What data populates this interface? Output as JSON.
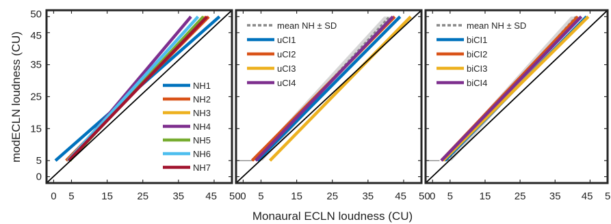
{
  "figure": {
    "xlabel": "Monaural ECLN loudness (CU)",
    "ylabel": "modECLN loudness (CU)"
  },
  "chart_data": [
    {
      "type": "line",
      "title": "",
      "xlim": [
        -2,
        50
      ],
      "ylim": [
        -2,
        52
      ],
      "xticks": [
        0,
        5,
        15,
        25,
        35,
        45,
        50
      ],
      "yticks": [
        0,
        5,
        15,
        25,
        35,
        45,
        50
      ],
      "show_yticklabels": true,
      "legend_position": "lower-right",
      "reference_line": {
        "from": [
          -2,
          -2
        ],
        "to": [
          50,
          52
        ]
      },
      "series": [
        {
          "name": "NH1",
          "color": "#0072BD",
          "x": [
            0.5,
            46.5
          ],
          "y": [
            5,
            50
          ]
        },
        {
          "name": "NH2",
          "color": "#D95319",
          "x": [
            3.5,
            43.5
          ],
          "y": [
            5,
            50
          ]
        },
        {
          "name": "NH3",
          "color": "#EDB120",
          "x": [
            4,
            42.5
          ],
          "y": [
            5,
            50
          ]
        },
        {
          "name": "NH4",
          "color": "#7E2F8E",
          "x": [
            4.5,
            38.5
          ],
          "y": [
            5,
            50
          ]
        },
        {
          "name": "NH5",
          "color": "#77AC30",
          "x": [
            4.5,
            42
          ],
          "y": [
            5,
            50
          ]
        },
        {
          "name": "NH6",
          "color": "#4DBEEE",
          "x": [
            4,
            40.5
          ],
          "y": [
            5,
            50
          ]
        },
        {
          "name": "NH7",
          "color": "#A2142F",
          "x": [
            4.2,
            43
          ],
          "y": [
            5,
            50
          ]
        }
      ]
    },
    {
      "type": "line",
      "title": "",
      "xlim": [
        -2,
        50
      ],
      "ylim": [
        -2,
        52
      ],
      "xticks": [
        0,
        5,
        15,
        25,
        35,
        45,
        50
      ],
      "yticks": [
        0,
        5,
        15,
        25,
        35,
        45,
        50
      ],
      "show_yticklabels": false,
      "legend_position": "upper-left",
      "reference_line": {
        "from": [
          -2,
          -2
        ],
        "to": [
          50,
          52
        ]
      },
      "horizontal_line": {
        "y": 5,
        "x_from": -2,
        "x_to": 3
      },
      "band": {
        "name": "mean NH ± SD",
        "color": "#888888",
        "x": [
          4,
          41
        ],
        "y": [
          5,
          50
        ],
        "sd": 1.5
      },
      "series": [
        {
          "name": "uCI1",
          "color": "#0072BD",
          "x": [
            4,
            44
          ],
          "y": [
            5,
            50
          ]
        },
        {
          "name": "uCI2",
          "color": "#D95319",
          "x": [
            2.5,
            42.5
          ],
          "y": [
            5,
            50
          ]
        },
        {
          "name": "uCI3",
          "color": "#EDB120",
          "x": [
            7.5,
            47
          ],
          "y": [
            5,
            50
          ]
        },
        {
          "name": "uCI4",
          "color": "#7E2F8E",
          "x": [
            3.5,
            42
          ],
          "y": [
            5,
            50
          ]
        }
      ]
    },
    {
      "type": "line",
      "title": "",
      "xlim": [
        -2,
        50
      ],
      "ylim": [
        -2,
        52
      ],
      "xticks": [
        0,
        5,
        15,
        25,
        35,
        45,
        50
      ],
      "yticks": [
        0,
        5,
        15,
        25,
        35,
        45,
        50
      ],
      "show_yticklabels": false,
      "legend_position": "upper-left",
      "reference_line": {
        "from": [
          -2,
          -2
        ],
        "to": [
          50,
          52
        ]
      },
      "horizontal_line": {
        "y": 5,
        "x_from": -2,
        "x_to": 2
      },
      "band": {
        "name": "mean NH ± SD",
        "color": "#888888",
        "x": [
          4,
          41
        ],
        "y": [
          5,
          50
        ],
        "sd": 1.5
      },
      "series": [
        {
          "name": "biCI1",
          "color": "#0072BD",
          "x": [
            3.5,
            44
          ],
          "y": [
            5,
            50
          ]
        },
        {
          "name": "biCI2",
          "color": "#D95319",
          "x": [
            2.5,
            41.5
          ],
          "y": [
            5,
            50
          ]
        },
        {
          "name": "biCI3",
          "color": "#EDB120",
          "x": [
            3,
            44.5
          ],
          "y": [
            5,
            50
          ]
        },
        {
          "name": "biCI4",
          "color": "#7E2F8E",
          "x": [
            2.5,
            42.5
          ],
          "y": [
            5,
            50
          ]
        }
      ]
    }
  ]
}
